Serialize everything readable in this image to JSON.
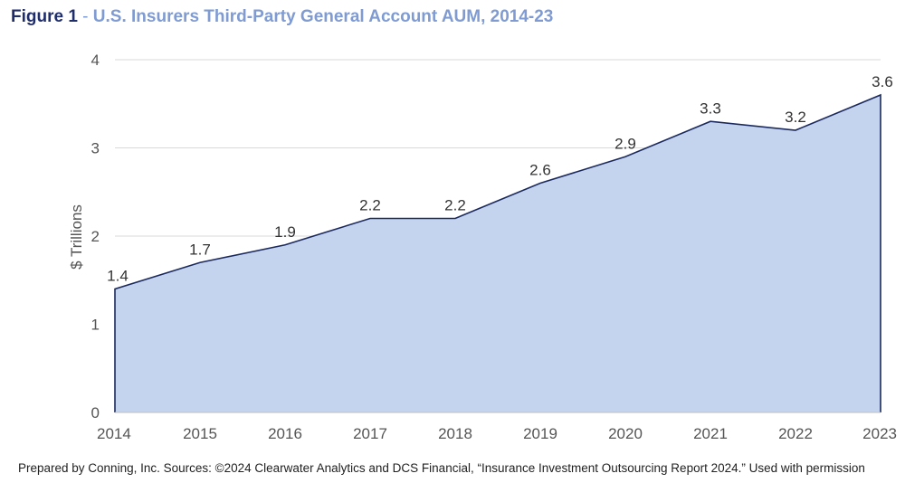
{
  "title": {
    "figure_label": "Figure 1",
    "separator": " - ",
    "subtitle": "U.S. Insurers Third-Party General Account AUM, 2014-23"
  },
  "footer": {
    "source": "Prepared by Conning, Inc. Sources: ©2024 Clearwater Analytics and DCS Financial, “Insurance Investment Outsourcing Report 2024.” Used with permission"
  },
  "chart_data": {
    "type": "area",
    "x": [
      "2014",
      "2015",
      "2016",
      "2017",
      "2018",
      "2019",
      "2020",
      "2021",
      "2022",
      "2023"
    ],
    "series": [
      {
        "values": [
          1.4,
          1.7,
          1.9,
          2.2,
          2.2,
          2.6,
          2.9,
          3.3,
          3.2,
          3.6
        ]
      }
    ],
    "data_labels": [
      "1.4",
      "1.7",
      "1.9",
      "2.2",
      "2.2",
      "2.6",
      "2.9",
      "3.3",
      "3.2",
      "3.6"
    ],
    "ylabel": "$ Trillions",
    "ylim": [
      0,
      4
    ],
    "yticks": [
      "0",
      "1",
      "2",
      "3",
      "4"
    ],
    "grid": true,
    "fill_color": "#c5d4ee",
    "line_color": "#1b2a5e"
  }
}
